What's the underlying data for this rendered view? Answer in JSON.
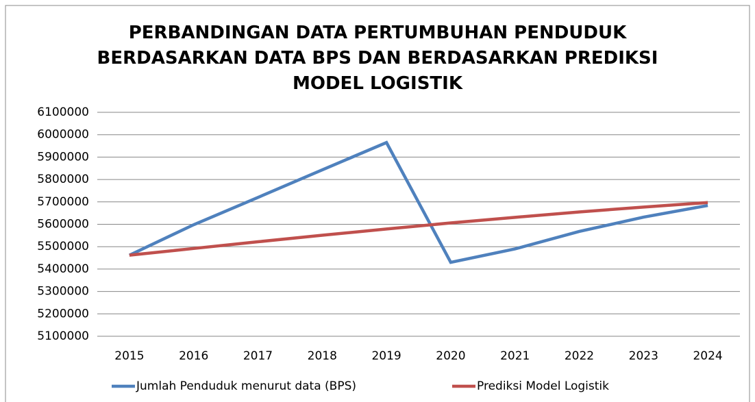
{
  "chart_data": {
    "type": "line",
    "title": "PERBANDINGAN DATA PERTUMBUHAN PENDUDUK BERDASARKAN DATA BPS DAN BERDASARKAN PREDIKSI MODEL LOGISTIK",
    "categories": [
      "2015",
      "2016",
      "2017",
      "2018",
      "2019",
      "2020",
      "2021",
      "2022",
      "2023",
      "2024"
    ],
    "series": [
      {
        "name": "Jumlah Penduduk menurut data (BPS)",
        "color": "#4f81bd",
        "values": [
          5462000,
          5598000,
          5720000,
          5843000,
          5965000,
          5430000,
          5490000,
          5568000,
          5632000,
          5684000
        ]
      },
      {
        "name": "Prediksi Model Logistik",
        "color": "#c0504d",
        "values": [
          5462000,
          5492000,
          5522000,
          5551000,
          5579000,
          5606000,
          5631000,
          5655000,
          5677000,
          5697000
        ]
      }
    ],
    "ylim": [
      5100000,
      6100000
    ],
    "yticks": [
      5100000,
      5200000,
      5300000,
      5400000,
      5500000,
      5600000,
      5700000,
      5800000,
      5900000,
      6000000,
      6100000
    ],
    "grid": true,
    "legend": "bottom"
  }
}
